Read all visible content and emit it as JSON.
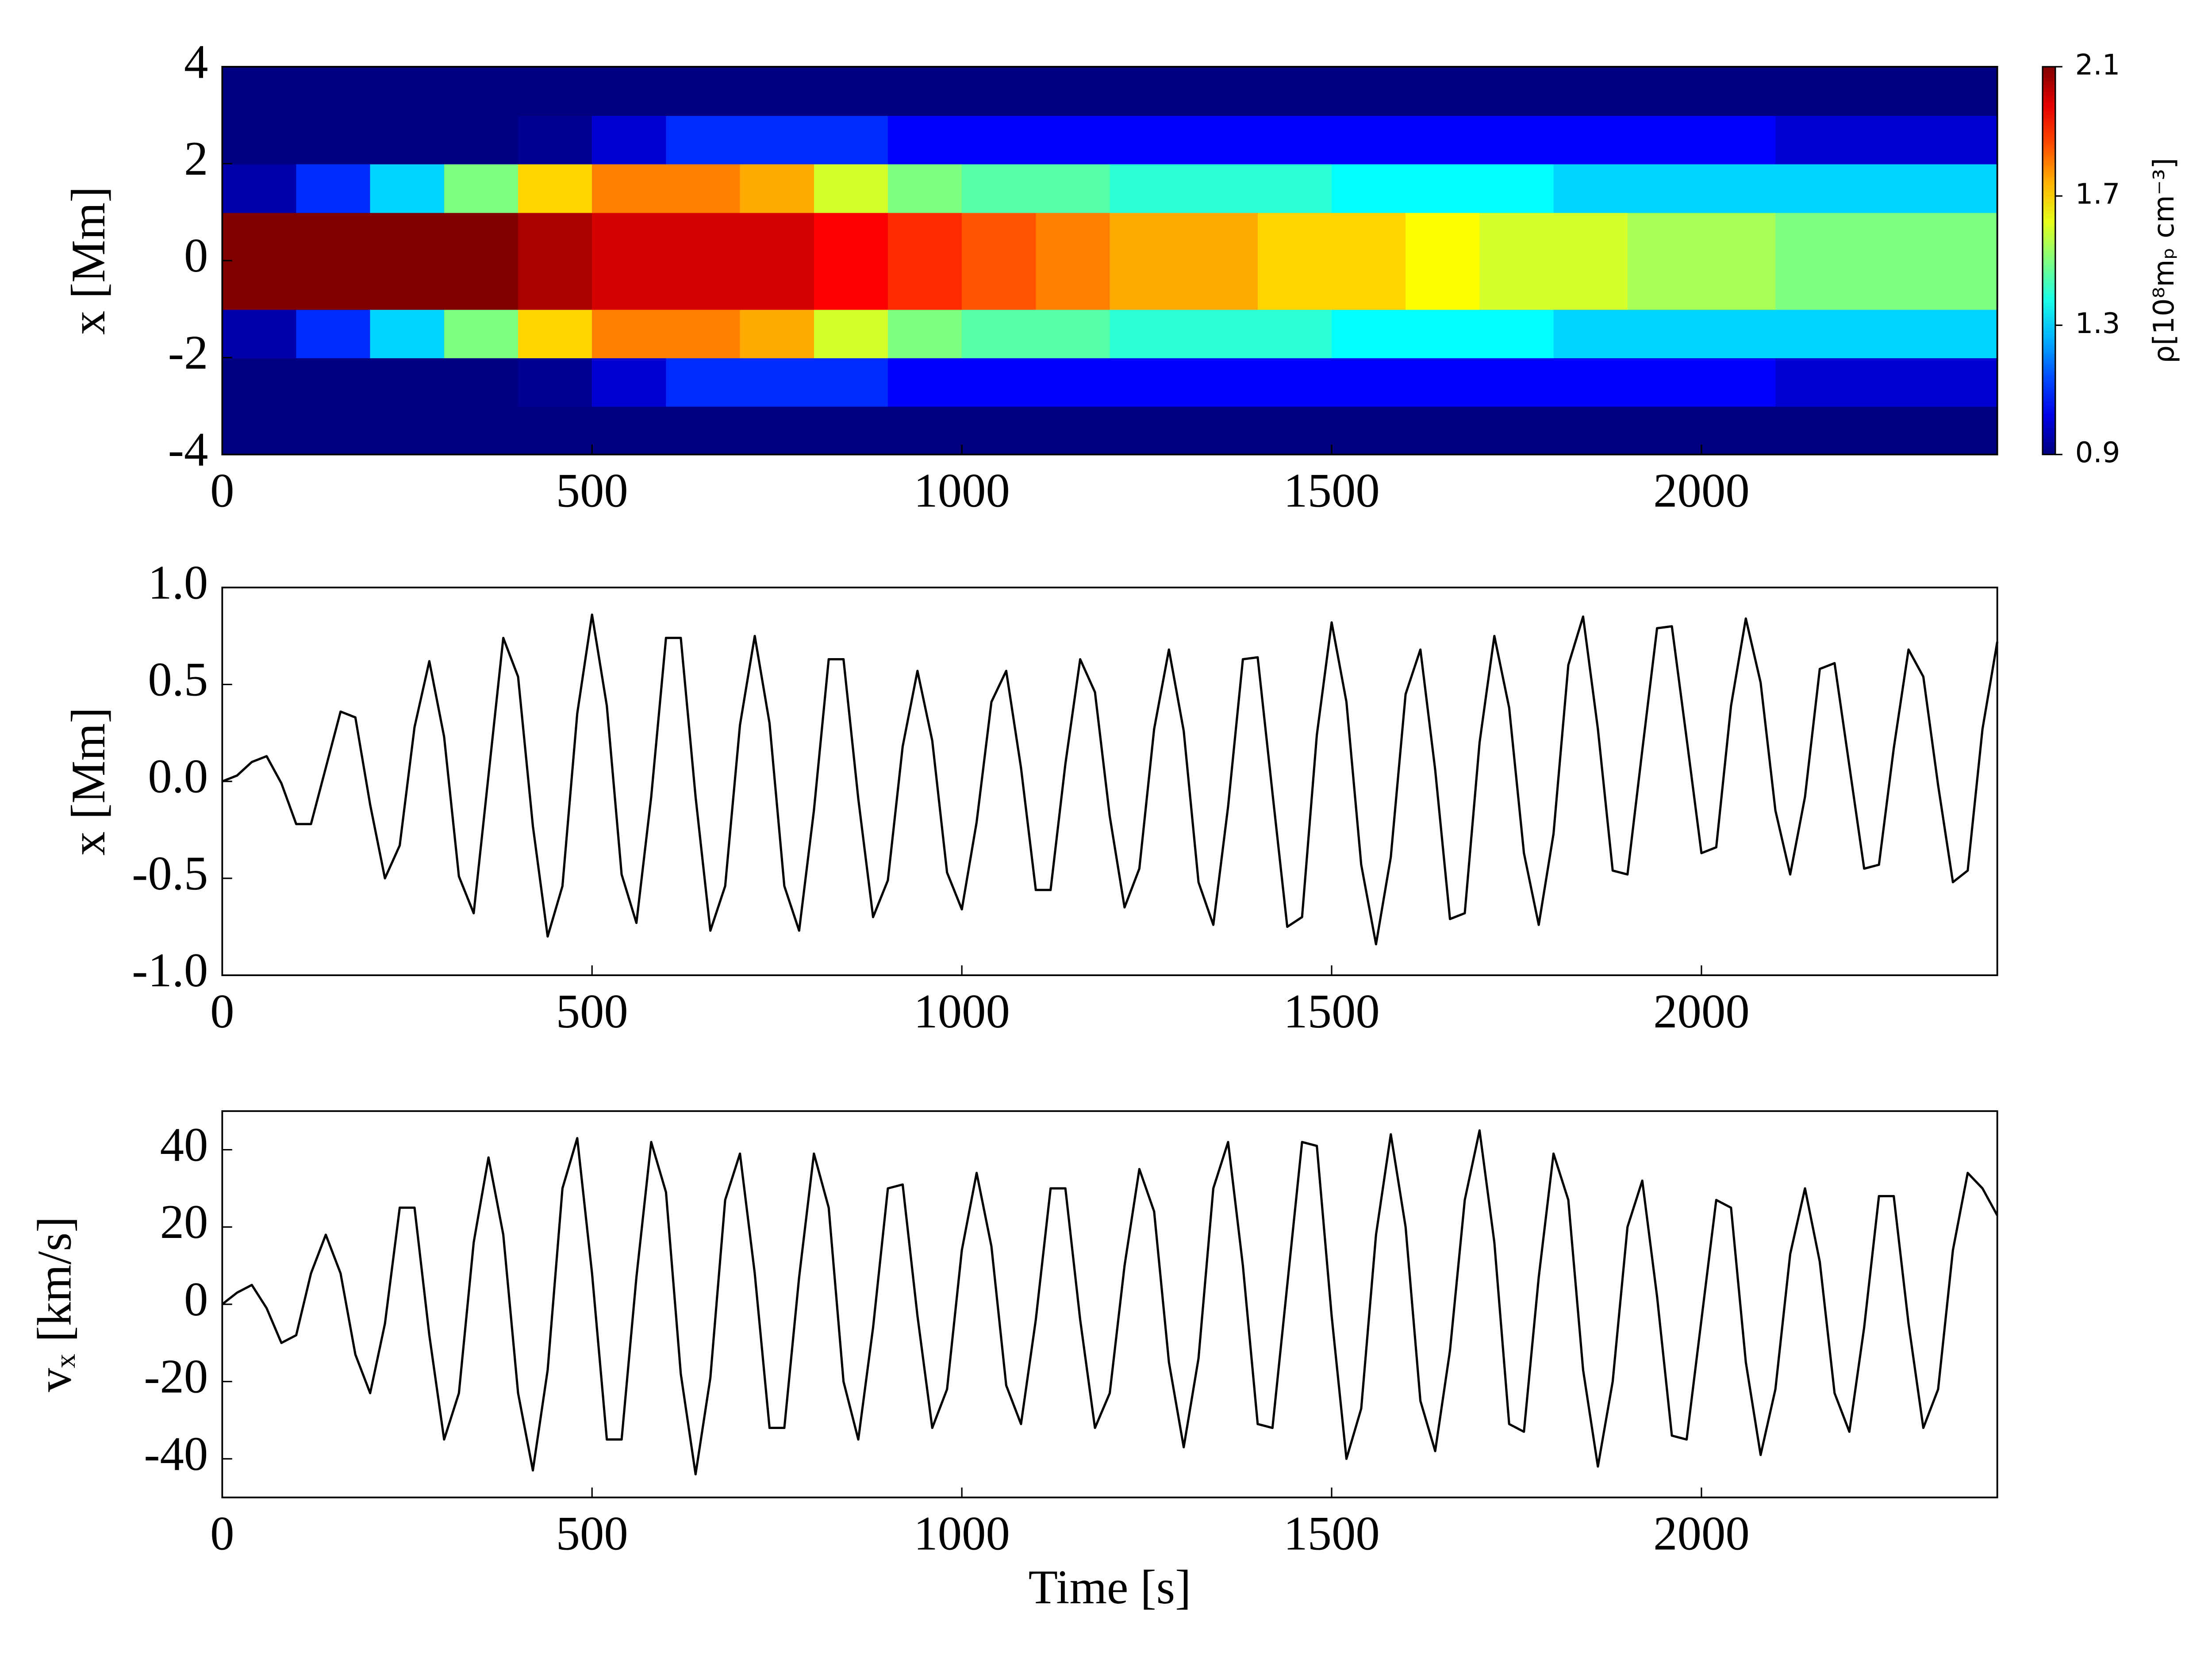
{
  "chart_data": [
    {
      "type": "heatmap",
      "ylabel": "x [Mm]",
      "colorbar_label": "ρ[10⁸mₚ cm⁻³]",
      "xlim": [
        0,
        2400
      ],
      "xticks": [
        0,
        500,
        1000,
        1500,
        2000
      ],
      "ylim": [
        -4,
        4
      ],
      "yticks": [
        -4,
        -2,
        0,
        2,
        4
      ],
      "clim": [
        0.9,
        2.1
      ],
      "cticks": [
        0.9,
        1.3,
        1.7,
        2.1
      ],
      "colormap": "jet",
      "xbins": [
        0,
        100,
        200,
        300,
        400,
        500,
        600,
        700,
        800,
        900,
        1000,
        1100,
        1200,
        1300,
        1400,
        1500,
        1600,
        1700,
        1800,
        1900,
        2000,
        2100,
        2200,
        2300,
        2400
      ],
      "ybins": [
        -4,
        -3,
        -2,
        -1,
        0,
        1,
        2,
        3,
        4
      ],
      "z": [
        [
          0.9,
          0.9,
          0.9,
          0.9,
          0.9,
          0.9,
          0.9,
          0.9,
          0.9,
          0.9,
          0.9,
          0.9,
          0.9,
          0.9,
          0.9,
          0.9,
          0.9,
          0.9,
          0.9,
          0.9,
          0.9,
          0.9,
          0.9,
          0.9
        ],
        [
          0.9,
          0.9,
          0.9,
          0.9,
          0.92,
          1.0,
          1.1,
          1.1,
          1.1,
          1.05,
          1.05,
          1.05,
          1.05,
          1.05,
          1.05,
          1.05,
          1.05,
          1.05,
          1.05,
          1.05,
          1.05,
          1.0,
          1.0,
          1.0
        ],
        [
          0.95,
          1.1,
          1.3,
          1.5,
          1.7,
          1.8,
          1.8,
          1.75,
          1.6,
          1.5,
          1.45,
          1.45,
          1.4,
          1.4,
          1.4,
          1.35,
          1.35,
          1.35,
          1.3,
          1.3,
          1.3,
          1.3,
          1.3,
          1.3
        ],
        [
          2.1,
          2.1,
          2.1,
          2.1,
          2.05,
          2.0,
          2.0,
          2.0,
          1.95,
          1.9,
          1.85,
          1.8,
          1.75,
          1.75,
          1.7,
          1.7,
          1.65,
          1.6,
          1.6,
          1.55,
          1.55,
          1.5,
          1.5,
          1.5
        ],
        [
          2.1,
          2.1,
          2.1,
          2.1,
          2.05,
          2.0,
          2.0,
          2.0,
          1.95,
          1.9,
          1.85,
          1.8,
          1.75,
          1.75,
          1.7,
          1.7,
          1.65,
          1.6,
          1.6,
          1.55,
          1.55,
          1.5,
          1.5,
          1.5
        ],
        [
          0.95,
          1.1,
          1.3,
          1.5,
          1.7,
          1.8,
          1.8,
          1.75,
          1.6,
          1.5,
          1.45,
          1.45,
          1.4,
          1.4,
          1.4,
          1.35,
          1.35,
          1.35,
          1.3,
          1.3,
          1.3,
          1.3,
          1.3,
          1.3
        ],
        [
          0.9,
          0.9,
          0.9,
          0.9,
          0.92,
          1.0,
          1.1,
          1.1,
          1.1,
          1.05,
          1.05,
          1.05,
          1.05,
          1.05,
          1.05,
          1.05,
          1.05,
          1.05,
          1.05,
          1.05,
          1.05,
          1.0,
          1.0,
          1.0
        ],
        [
          0.9,
          0.9,
          0.9,
          0.9,
          0.9,
          0.9,
          0.9,
          0.9,
          0.9,
          0.9,
          0.9,
          0.9,
          0.9,
          0.9,
          0.9,
          0.9,
          0.9,
          0.9,
          0.9,
          0.9,
          0.9,
          0.9,
          0.9,
          0.9
        ]
      ]
    },
    {
      "type": "line",
      "ylabel": "x [Mm]",
      "color": "#000000",
      "xlim": [
        0,
        2400
      ],
      "xticks": [
        0,
        500,
        1000,
        1500,
        2000
      ],
      "ylim": [
        -1,
        1
      ],
      "yticks": [
        {
          "value": -1,
          "label": "-1.0"
        },
        -0.5,
        {
          "value": 0,
          "label": "0.0"
        },
        0.5,
        {
          "value": 1,
          "label": "1.0"
        }
      ],
      "x": [
        0,
        20,
        40,
        60,
        80,
        100,
        120,
        140,
        160,
        180,
        200,
        220,
        240,
        260,
        280,
        300,
        320,
        340,
        360,
        380,
        400,
        420,
        440,
        460,
        480,
        500,
        520,
        540,
        560,
        580,
        600,
        620,
        640,
        660,
        680,
        700,
        720,
        740,
        760,
        780,
        800,
        820,
        840,
        860,
        880,
        900,
        920,
        940,
        960,
        980,
        1000,
        1020,
        1040,
        1060,
        1080,
        1100,
        1120,
        1140,
        1160,
        1180,
        1200,
        1220,
        1240,
        1260,
        1280,
        1300,
        1320,
        1340,
        1360,
        1380,
        1400,
        1420,
        1440,
        1460,
        1480,
        1500,
        1520,
        1540,
        1560,
        1580,
        1600,
        1620,
        1640,
        1660,
        1680,
        1700,
        1720,
        1740,
        1760,
        1780,
        1800,
        1820,
        1840,
        1860,
        1880,
        1900,
        1920,
        1940,
        1960,
        1980,
        2000,
        2020,
        2040,
        2060,
        2080,
        2100,
        2120,
        2140,
        2160,
        2180,
        2200,
        2220,
        2240,
        2260,
        2280,
        2300,
        2320,
        2340,
        2360,
        2380,
        2400
      ],
      "values": [
        0,
        0.03,
        0.1,
        0.13,
        -0.01,
        -0.22,
        -0.22,
        0.07,
        0.36,
        0.33,
        -0.12,
        -0.5,
        -0.33,
        0.28,
        0.62,
        0.23,
        -0.49,
        -0.68,
        0.03,
        0.74,
        0.54,
        -0.23,
        -0.8,
        -0.54,
        0.35,
        0.86,
        0.39,
        -0.48,
        -0.73,
        -0.08,
        0.74,
        0.74,
        -0.08,
        -0.77,
        -0.54,
        0.29,
        0.75,
        0.3,
        -0.54,
        -0.77,
        -0.15,
        0.63,
        0.63,
        -0.09,
        -0.7,
        -0.51,
        0.18,
        0.57,
        0.21,
        -0.47,
        -0.66,
        -0.21,
        0.41,
        0.57,
        0.07,
        -0.56,
        -0.56,
        0.09,
        0.63,
        0.46,
        -0.18,
        -0.65,
        -0.45,
        0.27,
        0.68,
        0.26,
        -0.52,
        -0.74,
        -0.13,
        0.63,
        0.64,
        -0.06,
        -0.75,
        -0.7,
        0.24,
        0.82,
        0.41,
        -0.43,
        -0.84,
        -0.39,
        0.45,
        0.68,
        0.06,
        -0.71,
        -0.68,
        0.2,
        0.75,
        0.38,
        -0.37,
        -0.74,
        -0.27,
        0.6,
        0.85,
        0.27,
        -0.46,
        -0.48,
        0.16,
        0.79,
        0.8,
        0.22,
        -0.37,
        -0.34,
        0.39,
        0.84,
        0.51,
        -0.15,
        -0.48,
        -0.08,
        0.58,
        0.61,
        0.08,
        -0.45,
        -0.43,
        0.17,
        0.68,
        0.54,
        -0.02,
        -0.52,
        -0.46,
        0.27,
        0.72
      ]
    },
    {
      "type": "line",
      "ylabel": "vₓ [km/s]",
      "xlabel": "Time [s]",
      "color": "#000000",
      "xlim": [
        0,
        2400
      ],
      "xticks": [
        0,
        500,
        1000,
        1500,
        2000
      ],
      "ylim": [
        -50,
        50
      ],
      "yticks": [
        -40,
        -20,
        0,
        20,
        40
      ],
      "x": [
        0,
        20,
        40,
        60,
        80,
        100,
        120,
        140,
        160,
        180,
        200,
        220,
        240,
        260,
        280,
        300,
        320,
        340,
        360,
        380,
        400,
        420,
        440,
        460,
        480,
        500,
        520,
        540,
        560,
        580,
        600,
        620,
        640,
        660,
        680,
        700,
        720,
        740,
        760,
        780,
        800,
        820,
        840,
        860,
        880,
        900,
        920,
        940,
        960,
        980,
        1000,
        1020,
        1040,
        1060,
        1080,
        1100,
        1120,
        1140,
        1160,
        1180,
        1200,
        1220,
        1240,
        1260,
        1280,
        1300,
        1320,
        1340,
        1360,
        1380,
        1400,
        1420,
        1440,
        1460,
        1480,
        1500,
        1520,
        1540,
        1560,
        1580,
        1600,
        1620,
        1640,
        1660,
        1680,
        1700,
        1720,
        1740,
        1760,
        1780,
        1800,
        1820,
        1840,
        1860,
        1880,
        1900,
        1920,
        1940,
        1960,
        1980,
        2000,
        2020,
        2040,
        2060,
        2080,
        2100,
        2120,
        2140,
        2160,
        2180,
        2200,
        2220,
        2240,
        2260,
        2280,
        2300,
        2320,
        2340,
        2360,
        2380,
        2400
      ],
      "values": [
        0,
        3,
        5,
        -1,
        -10,
        -8,
        8,
        18,
        8,
        -13,
        -23,
        -5,
        25,
        25,
        -8,
        -35,
        -23,
        16,
        38,
        18,
        -23,
        -43,
        -17,
        30,
        43,
        8,
        -35,
        -35,
        7,
        42,
        29,
        -18,
        -44,
        -19,
        27,
        39,
        8,
        -32,
        -32,
        7,
        39,
        25,
        -20,
        -35,
        -6,
        30,
        31,
        -3,
        -32,
        -22,
        14,
        34,
        15,
        -21,
        -31,
        -4,
        30,
        30,
        -4,
        -32,
        -23,
        10,
        35,
        24,
        -15,
        -37,
        -14,
        30,
        42,
        10,
        -31,
        -32,
        5,
        42,
        41,
        -3,
        -40,
        -27,
        18,
        44,
        20,
        -25,
        -38,
        -12,
        27,
        45,
        16,
        -31,
        -33,
        7,
        39,
        27,
        -17,
        -42,
        -20,
        20,
        32,
        2,
        -34,
        -35,
        -4,
        27,
        25,
        -15,
        -39,
        -22,
        13,
        30,
        11,
        -23,
        -33,
        -6,
        28,
        28,
        -5,
        -32,
        -22,
        14,
        34,
        30,
        23
      ]
    }
  ]
}
